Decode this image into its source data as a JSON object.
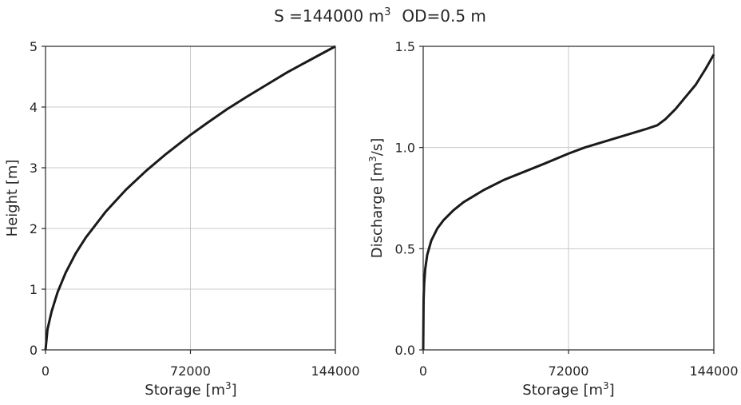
{
  "figure": {
    "title_prefix": "S =144000 m",
    "title_sup": "3",
    "title_suffix": "OD=0.5 m"
  },
  "chart_data": [
    {
      "type": "line",
      "xlabel": "Storage [m",
      "xlabel_sup": "3",
      "xlabel_end": "]",
      "ylabel": "Height [m]",
      "xlim": [
        0,
        144000
      ],
      "ylim": [
        0,
        5
      ],
      "xticks": [
        "0",
        "72000",
        "144000"
      ],
      "yticks": [
        "0",
        "1",
        "2",
        "3",
        "4",
        "5"
      ],
      "grid": true,
      "series": [
        {
          "x": [
            0,
            1000,
            3000,
            6000,
            10000,
            15000,
            20000,
            30000,
            40000,
            50000,
            60000,
            72000,
            80000,
            90000,
            100000,
            110000,
            120000,
            130000,
            144000
          ],
          "y": [
            0,
            0.34,
            0.63,
            0.95,
            1.27,
            1.59,
            1.85,
            2.28,
            2.64,
            2.95,
            3.23,
            3.54,
            3.73,
            3.96,
            4.17,
            4.37,
            4.57,
            4.75,
            5.0
          ]
        }
      ]
    },
    {
      "type": "line",
      "xlabel": "Storage [m",
      "xlabel_sup": "3",
      "xlabel_end": "]",
      "ylabel": "Discharge [m",
      "ylabel_sup": "3",
      "ylabel_end": "/s]",
      "xlim": [
        0,
        144000
      ],
      "ylim": [
        0,
        1.5
      ],
      "xticks": [
        "0",
        "72000",
        "144000"
      ],
      "yticks": [
        "0.0",
        "0.5",
        "1.0",
        "1.5"
      ],
      "grid": true,
      "series": [
        {
          "x": [
            0,
            200,
            500,
            1000,
            2000,
            4000,
            7000,
            10000,
            15000,
            20000,
            30000,
            40000,
            50000,
            60000,
            72000,
            80000,
            90000,
            100000,
            110000,
            116000,
            120000,
            125000,
            130000,
            135000,
            140000,
            144000
          ],
          "y": [
            0,
            0.25,
            0.33,
            0.4,
            0.47,
            0.54,
            0.6,
            0.64,
            0.69,
            0.73,
            0.79,
            0.84,
            0.88,
            0.92,
            0.97,
            1.0,
            1.03,
            1.06,
            1.09,
            1.11,
            1.14,
            1.19,
            1.25,
            1.31,
            1.39,
            1.46
          ]
        }
      ]
    }
  ]
}
